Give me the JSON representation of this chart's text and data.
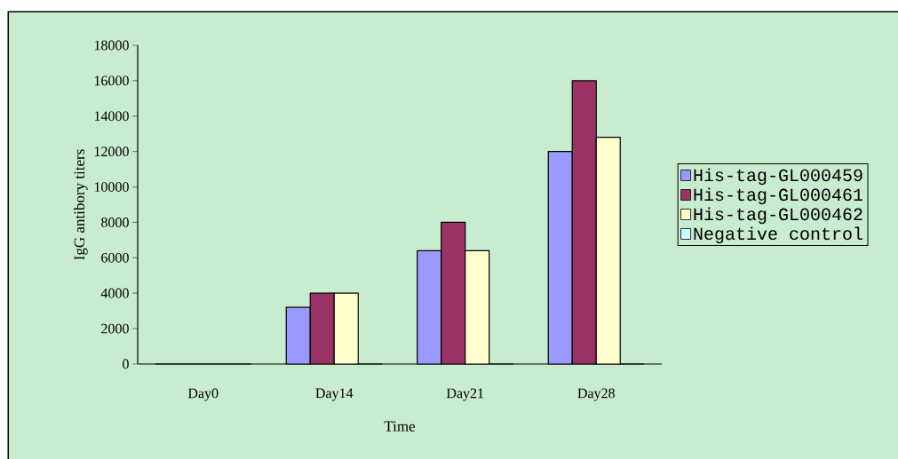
{
  "chart_data": {
    "type": "bar",
    "xlabel": "Time",
    "ylabel": "IgG  antibory  titers",
    "categories": [
      "Day0",
      "Day14",
      "Day21",
      "Day28"
    ],
    "series": [
      {
        "name": "His-tag-GL000459",
        "color": "#9999ff",
        "values": [
          0,
          3200,
          6400,
          12000
        ]
      },
      {
        "name": "His-tag-GL000461",
        "color": "#993366",
        "values": [
          0,
          4000,
          8000,
          16000
        ]
      },
      {
        "name": "His-tag-GL000462",
        "color": "#ffffcc",
        "values": [
          0,
          4000,
          6400,
          12800
        ]
      },
      {
        "name": "Negative control",
        "color": "#ccffff",
        "values": [
          0,
          0,
          0,
          0
        ]
      }
    ],
    "ylim": [
      0,
      18000
    ],
    "yticks": [
      0,
      2000,
      4000,
      6000,
      8000,
      10000,
      12000,
      14000,
      16000,
      18000
    ],
    "grid": false,
    "legend": "right"
  }
}
